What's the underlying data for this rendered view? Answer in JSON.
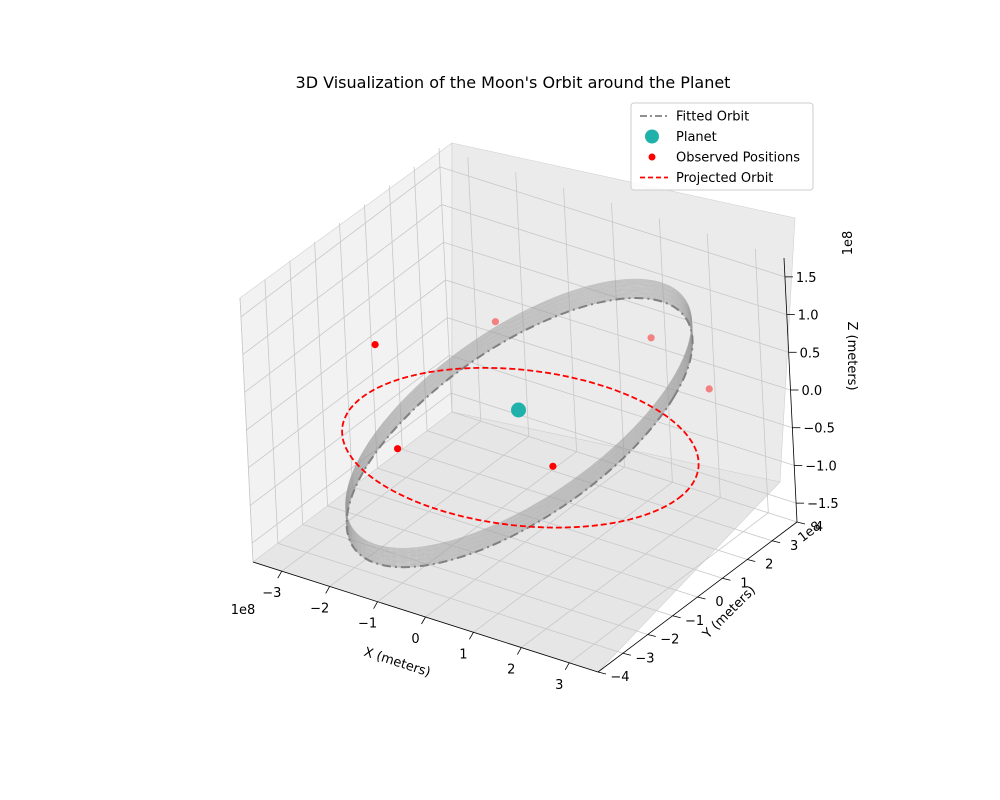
{
  "chart_data": {
    "type": "scatter",
    "projection": "3d",
    "title": "3D Visualization of the Moon's Orbit around the Planet",
    "xlabel": "X (meters)",
    "ylabel": "Y (meters)",
    "zlabel": "Z (meters)",
    "x_ticks": [
      "−3",
      "−2",
      "−1",
      "0",
      "1",
      "2",
      "3"
    ],
    "y_ticks": [
      "−4",
      "−3",
      "−2",
      "−1",
      "0",
      "1",
      "2",
      "3",
      "4"
    ],
    "z_ticks": [
      "−1.5",
      "−1.0",
      "−0.5",
      "0.0",
      "0.5",
      "1.0",
      "1.5"
    ],
    "x_offset": "1e8",
    "y_offset": "1e8",
    "z_offset": "1e8",
    "xlim": [
      -360000000.0,
      360000000.0
    ],
    "ylim": [
      -400000000.0,
      400000000.0
    ],
    "zlim": [
      -175000000.0,
      175000000.0
    ],
    "grid": true,
    "legend_position": "top-right",
    "colors": {
      "fitted": "#808080",
      "planet": "#20b2aa",
      "observed": "#ff0000",
      "projected": "#ff0000",
      "pane": "#f2f2f2",
      "grid": "#c8c8c8"
    },
    "series": [
      {
        "name": "Fitted Orbit",
        "kind": "line",
        "style": "dash-dot",
        "ellipse": {
          "semi_major": 384000000.0,
          "semi_minor": 384000000.0,
          "inclination_deg": 0
        }
      },
      {
        "name": "Planet",
        "kind": "scatter",
        "points": [
          {
            "x": 0,
            "y": 0,
            "z": 0
          }
        ]
      },
      {
        "name": "Observed Positions",
        "kind": "scatter",
        "points": [
          {
            "x": -330000000.0,
            "y": 60000000.0,
            "z": 5000000.0
          },
          {
            "x": -160000000.0,
            "y": 220000000.0,
            "z": 30000000.0
          },
          {
            "x": 130000000.0,
            "y": 290000000.0,
            "z": 50000000.0
          },
          {
            "x": 330000000.0,
            "y": 140000000.0,
            "z": 60000000.0
          },
          {
            "x": 160000000.0,
            "y": -170000000.0,
            "z": 0.0
          },
          {
            "x": -140000000.0,
            "y": -220000000.0,
            "z": -25000000.0
          }
        ]
      },
      {
        "name": "Projected Orbit",
        "kind": "line",
        "style": "dashed",
        "ellipse": {
          "semi_major": 384000000.0,
          "semi_minor": 384000000.0,
          "z": -50000000.0
        }
      }
    ]
  }
}
